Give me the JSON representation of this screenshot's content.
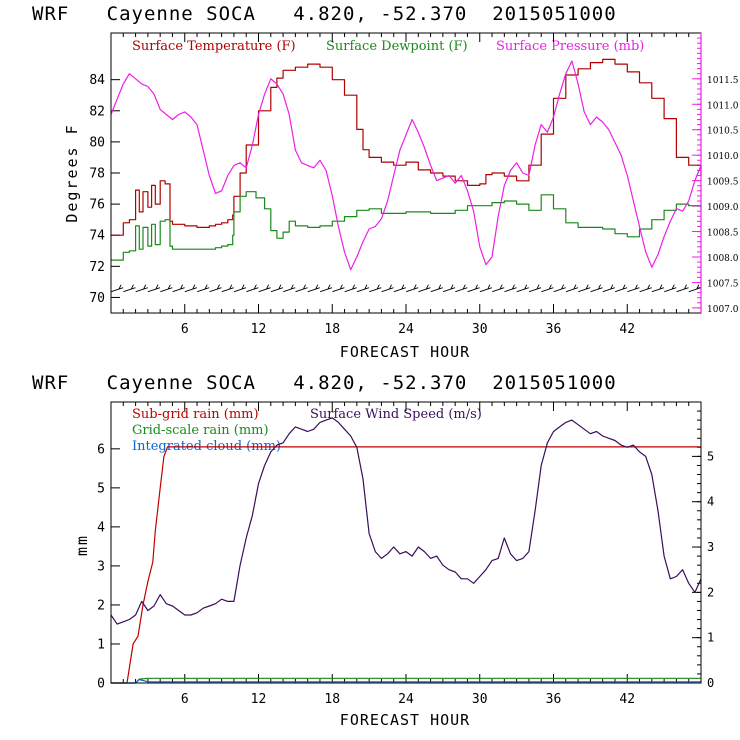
{
  "chart_data": [
    {
      "type": "line",
      "title": "WRF   Cayenne SOCA   4.820, -52.370  2015051000",
      "xlabel": "FORECAST HOUR",
      "ylabel": "Degrees F",
      "xlim": [
        0,
        48
      ],
      "xticks": [
        6,
        12,
        18,
        24,
        30,
        36,
        42
      ],
      "xtick_labels": [
        "6",
        "12",
        "18",
        "24",
        "30",
        "36",
        "42"
      ],
      "ylim": [
        69,
        87
      ],
      "yticks": [
        70,
        72,
        74,
        76,
        78,
        80,
        82,
        84
      ],
      "ytick_labels": [
        "70",
        "72",
        "74",
        "76",
        "78",
        "80",
        "82",
        "84"
      ],
      "y2lim": [
        1006.9,
        1012.4
      ],
      "y2ticks": [
        1007.0,
        1007.5,
        1008.0,
        1008.5,
        1009.0,
        1009.5,
        1010.0,
        1010.5,
        1011.0,
        1011.5
      ],
      "y2tick_labels": [
        "1007.0",
        "1007.5",
        "1008.0",
        "1008.5",
        "1009.0",
        "1009.5",
        "1010.0",
        "1010.5",
        "1011.0",
        "1011.5"
      ],
      "legend": [
        "Surface Temperature (F)",
        "Surface Dewpoint (F)",
        "Surface Pressure (mb)"
      ],
      "series": [
        {
          "name": "Surface Temperature (F)",
          "color": "#b00000",
          "axis": "left",
          "step": true,
          "x": [
            0,
            1,
            1.5,
            2,
            2.3,
            2.6,
            3,
            3.3,
            3.6,
            4,
            4.4,
            4.8,
            5,
            6,
            7,
            8,
            8.5,
            9,
            9.5,
            9.9,
            10,
            10.5,
            11,
            12,
            13,
            13.5,
            14,
            15,
            16,
            17,
            18,
            19,
            20,
            20.5,
            21,
            22,
            23,
            24,
            25,
            26,
            27,
            28,
            29,
            30,
            30.5,
            31,
            32,
            33,
            34,
            35,
            36,
            37,
            38,
            39,
            40,
            41,
            42,
            43,
            44,
            45,
            46,
            47,
            48
          ],
          "y": [
            74.0,
            74.8,
            75.0,
            76.9,
            75.5,
            76.8,
            75.8,
            77.2,
            76.0,
            77.5,
            77.3,
            74.9,
            74.7,
            74.6,
            74.5,
            74.6,
            74.7,
            74.8,
            75.0,
            75.3,
            76.5,
            78.0,
            79.8,
            82.0,
            83.5,
            84.1,
            84.6,
            84.8,
            85.0,
            84.8,
            84.0,
            83.0,
            80.8,
            79.5,
            79.0,
            78.7,
            78.5,
            78.7,
            78.2,
            78.0,
            77.8,
            77.5,
            77.2,
            77.3,
            77.9,
            78.0,
            77.8,
            77.5,
            78.5,
            80.5,
            82.8,
            84.3,
            84.7,
            85.1,
            85.3,
            85.0,
            84.5,
            83.8,
            82.8,
            81.5,
            79.0,
            78.5,
            77.8
          ]
        },
        {
          "name": "Surface Dewpoint (F)",
          "color": "#1a8a1a",
          "axis": "left",
          "step": true,
          "x": [
            0,
            1,
            1.5,
            2,
            2.3,
            2.6,
            3,
            3.3,
            3.6,
            4,
            4.4,
            4.8,
            5,
            6,
            7,
            8,
            8.5,
            9,
            9.5,
            9.9,
            10,
            10.5,
            11,
            11.8,
            12.5,
            13,
            13.5,
            14,
            14.5,
            15,
            16,
            17,
            18,
            19,
            20,
            21,
            22,
            23,
            24,
            25,
            26,
            27,
            28,
            29,
            30,
            31,
            32,
            33,
            34,
            35,
            36,
            37,
            38,
            39,
            40,
            41,
            42,
            43,
            44,
            45,
            46,
            47,
            48
          ],
          "y": [
            72.4,
            72.9,
            73.0,
            74.6,
            73.1,
            74.5,
            73.3,
            74.7,
            73.4,
            74.9,
            75.0,
            73.3,
            73.1,
            73.1,
            73.1,
            73.1,
            73.2,
            73.3,
            73.4,
            74.0,
            75.5,
            76.5,
            76.8,
            76.4,
            75.7,
            74.3,
            73.8,
            74.2,
            74.9,
            74.6,
            74.5,
            74.6,
            74.9,
            75.2,
            75.6,
            75.7,
            75.4,
            75.4,
            75.5,
            75.5,
            75.4,
            75.4,
            75.6,
            75.9,
            75.9,
            76.1,
            76.2,
            76.0,
            75.6,
            76.6,
            75.7,
            74.8,
            74.5,
            74.5,
            74.4,
            74.1,
            73.9,
            74.4,
            75.0,
            75.6,
            76.0,
            75.9,
            75.7
          ]
        },
        {
          "name": "Surface Pressure (mb)",
          "color": "#ee1ee6",
          "axis": "right",
          "x": [
            0,
            0.5,
            1,
            1.5,
            2,
            2.5,
            3,
            3.5,
            4,
            4.5,
            5,
            5.5,
            6,
            6.5,
            7,
            7.5,
            8,
            8.5,
            9,
            9.5,
            10,
            10.5,
            11,
            11.5,
            12,
            12.5,
            13,
            13.5,
            14,
            14.5,
            15,
            15.5,
            16,
            16.5,
            17,
            17.5,
            18,
            18.5,
            19,
            19.5,
            20,
            20.5,
            21,
            21.5,
            22,
            22.5,
            23,
            23.5,
            24,
            24.5,
            25,
            25.5,
            26,
            26.5,
            27,
            27.5,
            28,
            28.5,
            29,
            29.5,
            30,
            30.5,
            31,
            31.5,
            32,
            32.5,
            33,
            33.5,
            34,
            34.5,
            35,
            35.5,
            36,
            36.5,
            37,
            37.5,
            38,
            38.5,
            39,
            39.5,
            40,
            40.5,
            41,
            41.5,
            42,
            42.5,
            43,
            43.5,
            44,
            44.5,
            45,
            45.5,
            46,
            46.5,
            47,
            47.5,
            48
          ],
          "y": [
            1010.8,
            1011.1,
            1011.4,
            1011.6,
            1011.5,
            1011.4,
            1011.35,
            1011.2,
            1010.9,
            1010.8,
            1010.7,
            1010.8,
            1010.85,
            1010.75,
            1010.6,
            1010.1,
            1009.6,
            1009.25,
            1009.3,
            1009.6,
            1009.8,
            1009.85,
            1009.75,
            1010.2,
            1010.8,
            1011.2,
            1011.5,
            1011.4,
            1011.2,
            1010.8,
            1010.1,
            1009.85,
            1009.8,
            1009.75,
            1009.9,
            1009.7,
            1009.2,
            1008.6,
            1008.1,
            1007.75,
            1008.0,
            1008.3,
            1008.55,
            1008.6,
            1008.75,
            1009.1,
            1009.6,
            1010.1,
            1010.4,
            1010.7,
            1010.45,
            1010.15,
            1009.8,
            1009.5,
            1009.55,
            1009.6,
            1009.45,
            1009.6,
            1009.3,
            1008.9,
            1008.2,
            1007.85,
            1008.0,
            1008.8,
            1009.4,
            1009.7,
            1009.85,
            1009.65,
            1009.6,
            1010.2,
            1010.6,
            1010.45,
            1010.75,
            1011.2,
            1011.6,
            1011.85,
            1011.4,
            1010.85,
            1010.6,
            1010.75,
            1010.65,
            1010.5,
            1010.25,
            1010.0,
            1009.6,
            1009.1,
            1008.6,
            1008.1,
            1007.8,
            1008.05,
            1008.4,
            1008.7,
            1008.95,
            1008.9,
            1009.1,
            1009.5,
            1009.8
          ]
        }
      ],
      "wind_barbs": {
        "y": 70.5,
        "x_start": 0.5,
        "x_step": 1,
        "count": 48
      }
    },
    {
      "type": "line",
      "title": "WRF   Cayenne SOCA   4.820, -52.370  2015051000",
      "xlabel": "FORECAST HOUR",
      "ylabel": "mm",
      "xlim": [
        0,
        48
      ],
      "xticks": [
        6,
        12,
        18,
        24,
        30,
        36,
        42
      ],
      "xtick_labels": [
        "6",
        "12",
        "18",
        "24",
        "30",
        "36",
        "42"
      ],
      "ylim": [
        0,
        7.2
      ],
      "yticks": [
        0,
        1,
        2,
        3,
        4,
        5,
        6
      ],
      "ytick_labels": [
        "0",
        "1",
        "2",
        "3",
        "4",
        "5",
        "6"
      ],
      "y2lim": [
        0,
        6.2
      ],
      "y2ticks": [
        0,
        1,
        2,
        3,
        4,
        5
      ],
      "y2tick_labels": [
        "0",
        "1",
        "2",
        "3",
        "4",
        "5"
      ],
      "legend": [
        "Sub-grid rain (mm)",
        "Grid-scale rain (mm)",
        "Integrated cloud (mm)",
        "Surface Wind Speed (m/s)"
      ],
      "series": [
        {
          "name": "Sub-grid rain (mm)",
          "color": "#c00000",
          "axis": "left",
          "x": [
            0,
            1.3,
            1.8,
            2.2,
            2.6,
            3.0,
            3.4,
            3.6,
            4.0,
            4.3,
            4.6,
            48
          ],
          "y": [
            0,
            0,
            1.0,
            1.2,
            2.0,
            2.6,
            3.1,
            3.9,
            5.0,
            5.8,
            6.05,
            6.05
          ]
        },
        {
          "name": "Grid-scale rain (mm)",
          "color": "#1a8a1a",
          "axis": "left",
          "x": [
            0,
            2.0,
            2.3,
            3.0,
            48
          ],
          "y": [
            0,
            0,
            0.1,
            0.12,
            0.12
          ]
        },
        {
          "name": "Integrated cloud (mm)",
          "color": "#0a64d2",
          "axis": "left",
          "x": [
            0,
            2.0,
            2.3,
            3.0,
            48
          ],
          "y": [
            0,
            0,
            0.09,
            0.03,
            0.03
          ]
        },
        {
          "name": "Surface Wind Speed (m/s)",
          "color": "#3a0f5a",
          "axis": "right",
          "x": [
            0,
            0.5,
            1,
            1.5,
            2,
            2.5,
            3,
            3.5,
            4,
            4.5,
            5,
            5.5,
            6,
            6.5,
            7,
            7.5,
            8,
            8.5,
            9,
            9.5,
            10,
            10.5,
            11,
            11.5,
            12,
            12.5,
            13,
            13.5,
            14,
            14.5,
            15,
            15.5,
            16,
            16.5,
            17,
            17.5,
            18,
            18.5,
            19,
            19.5,
            20,
            20.5,
            21,
            21.5,
            22,
            22.5,
            23,
            23.5,
            24,
            24.5,
            25,
            25.5,
            26,
            26.5,
            27,
            27.5,
            28,
            28.5,
            29,
            29.5,
            30,
            30.5,
            31,
            31.5,
            32,
            32.5,
            33,
            33.5,
            34,
            34.5,
            35,
            35.5,
            36,
            36.5,
            37,
            37.5,
            38,
            38.5,
            39,
            39.5,
            40,
            40.5,
            41,
            41.5,
            42,
            42.5,
            43,
            43.5,
            44,
            44.5,
            45,
            45.5,
            46,
            46.5,
            47,
            47.5,
            48
          ],
          "y": [
            1.5,
            1.3,
            1.35,
            1.4,
            1.5,
            1.8,
            1.6,
            1.7,
            1.95,
            1.75,
            1.7,
            1.6,
            1.5,
            1.5,
            1.55,
            1.65,
            1.7,
            1.75,
            1.85,
            1.8,
            1.8,
            2.6,
            3.2,
            3.7,
            4.4,
            4.8,
            5.1,
            5.25,
            5.3,
            5.5,
            5.65,
            5.6,
            5.55,
            5.6,
            5.75,
            5.8,
            5.85,
            5.75,
            5.6,
            5.45,
            5.2,
            4.5,
            3.3,
            2.9,
            2.75,
            2.85,
            3.0,
            2.85,
            2.9,
            2.8,
            3.0,
            2.9,
            2.75,
            2.8,
            2.6,
            2.5,
            2.45,
            2.3,
            2.3,
            2.2,
            2.35,
            2.5,
            2.7,
            2.75,
            3.2,
            2.85,
            2.7,
            2.75,
            2.9,
            3.8,
            4.8,
            5.3,
            5.55,
            5.65,
            5.75,
            5.8,
            5.7,
            5.6,
            5.5,
            5.55,
            5.45,
            5.4,
            5.35,
            5.25,
            5.2,
            5.25,
            5.1,
            5.0,
            4.6,
            3.8,
            2.8,
            2.3,
            2.35,
            2.5,
            2.2,
            2.0,
            2.3
          ]
        }
      ]
    }
  ]
}
